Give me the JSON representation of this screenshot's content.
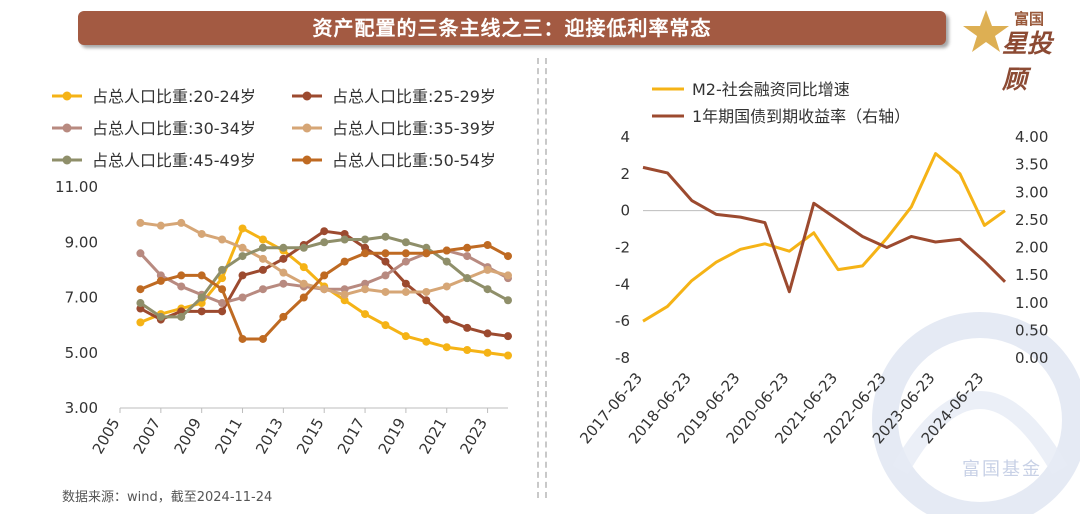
{
  "header": {
    "title": "资产配置的三条主线之三：迎接低利率常态",
    "logo_top": "富国",
    "logo_main": "星投顾",
    "watermark": "富国基金"
  },
  "source_note": "数据来源：wind，截至2024-11-24",
  "colors": {
    "banner": "#a35a42",
    "age_20_24": "#f5b316",
    "age_25_29": "#9c4a2f",
    "age_30_34": "#b88a80",
    "age_35_39": "#d6a676",
    "age_45_49": "#8f8f6a",
    "age_50_54": "#bf6a22",
    "m2": "#f5b316",
    "bond": "#9c4a2f"
  },
  "chart_data": [
    {
      "type": "line",
      "x": [
        2006,
        2007,
        2008,
        2009,
        2010,
        2011,
        2012,
        2013,
        2014,
        2015,
        2016,
        2017,
        2018,
        2019,
        2020,
        2021,
        2022,
        2023,
        2024
      ],
      "xticks": [
        "2005",
        "2007",
        "2009",
        "2011",
        "2013",
        "2015",
        "2017",
        "2019",
        "2021",
        "2023"
      ],
      "ylim": [
        3,
        11
      ],
      "yticks": [
        "3.00",
        "5.00",
        "7.00",
        "9.00",
        "11.00"
      ],
      "series": [
        {
          "name": "占总人口比重:20-24岁",
          "color": "#f5b316",
          "values": [
            6.1,
            6.4,
            6.6,
            6.8,
            7.7,
            9.5,
            9.1,
            8.7,
            8.1,
            7.4,
            6.9,
            6.4,
            6.0,
            5.6,
            5.4,
            5.2,
            5.1,
            5.0,
            4.9
          ]
        },
        {
          "name": "占总人口比重:25-29岁",
          "color": "#9c4a2f",
          "values": [
            6.6,
            6.2,
            6.5,
            6.5,
            6.5,
            7.8,
            8.0,
            8.4,
            8.9,
            9.4,
            9.3,
            8.8,
            8.3,
            7.5,
            6.9,
            6.2,
            5.9,
            5.7,
            5.6
          ]
        },
        {
          "name": "占总人口比重:30-34岁",
          "color": "#b88a80",
          "values": [
            8.6,
            7.8,
            7.4,
            7.1,
            6.8,
            7.0,
            7.3,
            7.5,
            7.4,
            7.3,
            7.3,
            7.5,
            7.8,
            8.3,
            8.6,
            8.7,
            8.5,
            8.1,
            7.7
          ]
        },
        {
          "name": "占总人口比重:35-39岁",
          "color": "#d6a676",
          "values": [
            9.7,
            9.6,
            9.7,
            9.3,
            9.1,
            8.8,
            8.4,
            7.9,
            7.5,
            7.3,
            7.1,
            7.3,
            7.2,
            7.2,
            7.2,
            7.4,
            7.7,
            8.0,
            7.8
          ]
        },
        {
          "name": "占总人口比重:45-49岁",
          "color": "#8f8f6a",
          "values": [
            6.8,
            6.3,
            6.3,
            7.0,
            8.0,
            8.5,
            8.8,
            8.8,
            8.8,
            9.0,
            9.1,
            9.1,
            9.2,
            9.0,
            8.8,
            8.3,
            7.7,
            7.3,
            6.9
          ]
        },
        {
          "name": "占总人口比重:50-54岁",
          "color": "#bf6a22",
          "values": [
            7.3,
            7.6,
            7.8,
            7.8,
            7.3,
            5.5,
            5.5,
            6.3,
            7.0,
            7.8,
            8.3,
            8.6,
            8.6,
            8.6,
            8.6,
            8.7,
            8.8,
            8.9,
            8.5
          ]
        }
      ]
    },
    {
      "type": "line",
      "x": [
        "2017-06-23",
        "2017-12-23",
        "2018-06-23",
        "2018-12-23",
        "2019-06-23",
        "2019-12-23",
        "2020-06-23",
        "2020-12-23",
        "2021-06-23",
        "2021-12-23",
        "2022-06-23",
        "2022-12-23",
        "2023-06-23",
        "2023-12-23",
        "2024-06-23",
        "2024-11-24"
      ],
      "xticks": [
        "2017-06-23",
        "2018-06-23",
        "2019-06-23",
        "2020-06-23",
        "2021-06-23",
        "2022-06-23",
        "2023-06-23",
        "2024-06-23"
      ],
      "ylim": [
        -8,
        4
      ],
      "yticks": [
        "-8",
        "-6",
        "-4",
        "-2",
        "0",
        "2",
        "4"
      ],
      "y2lim": [
        0,
        4
      ],
      "y2ticks": [
        "0.00",
        "0.50",
        "1.00",
        "1.50",
        "2.00",
        "2.50",
        "3.00",
        "3.50",
        "4.00"
      ],
      "series": [
        {
          "name": "M2-社会融资同比增速",
          "axis": "left",
          "color": "#f5b316",
          "values": [
            -6.0,
            -5.2,
            -3.8,
            -2.8,
            -2.1,
            -1.8,
            -2.2,
            -1.2,
            -3.2,
            -3.0,
            -1.5,
            0.2,
            3.1,
            2.0,
            -0.8,
            0.0
          ]
        },
        {
          "name": "1年期国债到期收益率（右轴）",
          "axis": "right",
          "color": "#9c4a2f",
          "values": [
            3.45,
            3.35,
            2.85,
            2.6,
            2.55,
            2.45,
            1.2,
            2.8,
            2.5,
            2.2,
            2.0,
            2.2,
            2.1,
            2.15,
            1.75,
            1.38
          ]
        }
      ]
    }
  ]
}
